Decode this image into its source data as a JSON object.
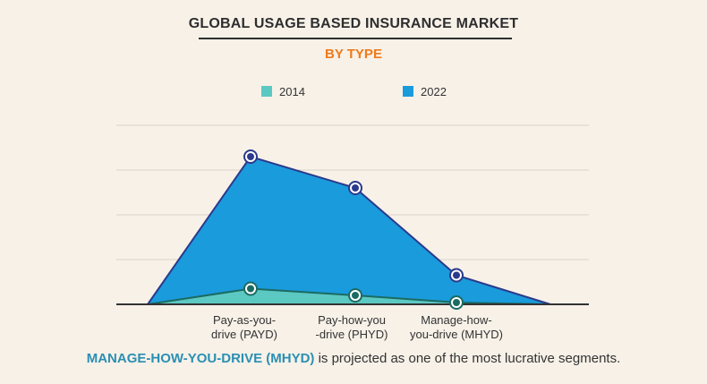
{
  "title": "GLOBAL USAGE BASED INSURANCE MARKET",
  "subtitle": "BY TYPE",
  "colors": {
    "title": "#2e2e2e",
    "subtitle": "#f07a1a",
    "series_2014_fill": "#5cc8c2",
    "series_2014_line": "#1a6b62",
    "series_2022_fill": "#1a9bdc",
    "series_2022_line": "#2b3a8c",
    "grid": "#d8d2c8",
    "highlight": "#2b8fb3"
  },
  "legend": [
    {
      "label": "2014",
      "color": "#5cc8c2"
    },
    {
      "label": "2022",
      "color": "#1a9bdc"
    }
  ],
  "footer": {
    "highlight": "MANAGE-HOW-YOU-DRIVE (MHYD)",
    "rest": " is projected as one of the most lucrative segments."
  },
  "chart_data": {
    "type": "area",
    "categories": [
      "Pay-as-you-drive (PAYD)",
      "Pay-how-you-drive (PHYD)",
      "Manage-how-you-drive (MHYD)"
    ],
    "tick_lines": [
      [
        "Pay-as-you-",
        "drive (PAYD)"
      ],
      [
        "Pay-how-you",
        "-drive (PHYD)"
      ],
      [
        "Manage-how-",
        "you-drive (MHYD)"
      ]
    ],
    "series": [
      {
        "name": "2014",
        "values": [
          0.35,
          0.2,
          0.04
        ]
      },
      {
        "name": "2022",
        "values": [
          3.3,
          2.6,
          0.65
        ]
      }
    ],
    "ylim": [
      0,
      4
    ],
    "grid": true,
    "legend_position": "top-center",
    "ylabel": "",
    "xlabel": ""
  }
}
